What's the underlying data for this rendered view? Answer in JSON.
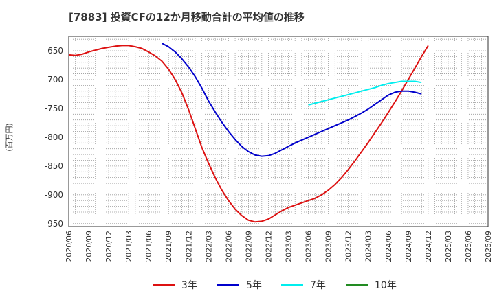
{
  "chart_data": {
    "type": "line",
    "title": "[7883]  投資CFの12か月移動合計の平均値の推移",
    "ylabel": "(百万円)",
    "xlabel": "",
    "ylim": [
      -955,
      -625
    ],
    "yticks": [
      -650,
      -700,
      -750,
      -800,
      -850,
      -900,
      -950
    ],
    "xlim": [
      "2020/06",
      "2025/09"
    ],
    "xticks": [
      "2020/06",
      "2020/09",
      "2020/12",
      "2021/03",
      "2021/06",
      "2021/09",
      "2021/12",
      "2022/03",
      "2022/06",
      "2022/09",
      "2022/12",
      "2023/03",
      "2023/06",
      "2023/09",
      "2023/12",
      "2024/03",
      "2024/06",
      "2024/09",
      "2024/12",
      "2025/03",
      "2025/06",
      "2025/09"
    ],
    "grid": true,
    "legend": "bottom",
    "series": [
      {
        "name": "3年",
        "color": "#dd1111",
        "points": [
          [
            "2020/06",
            -657
          ],
          [
            "2020/07",
            -658
          ],
          [
            "2020/08",
            -656
          ],
          [
            "2020/09",
            -652
          ],
          [
            "2020/10",
            -649
          ],
          [
            "2020/11",
            -646
          ],
          [
            "2020/12",
            -644
          ],
          [
            "2021/01",
            -642
          ],
          [
            "2021/02",
            -641
          ],
          [
            "2021/03",
            -641
          ],
          [
            "2021/04",
            -643
          ],
          [
            "2021/05",
            -646
          ],
          [
            "2021/06",
            -652
          ],
          [
            "2021/07",
            -659
          ],
          [
            "2021/08",
            -668
          ],
          [
            "2021/09",
            -682
          ],
          [
            "2021/10",
            -700
          ],
          [
            "2021/11",
            -723
          ],
          [
            "2021/12",
            -752
          ],
          [
            "2022/01",
            -785
          ],
          [
            "2022/02",
            -818
          ],
          [
            "2022/03",
            -845
          ],
          [
            "2022/04",
            -870
          ],
          [
            "2022/05",
            -892
          ],
          [
            "2022/06",
            -910
          ],
          [
            "2022/07",
            -925
          ],
          [
            "2022/08",
            -936
          ],
          [
            "2022/09",
            -944
          ],
          [
            "2022/10",
            -947
          ],
          [
            "2022/11",
            -946
          ],
          [
            "2022/12",
            -942
          ],
          [
            "2023/01",
            -935
          ],
          [
            "2023/02",
            -928
          ],
          [
            "2023/03",
            -922
          ],
          [
            "2023/04",
            -918
          ],
          [
            "2023/05",
            -914
          ],
          [
            "2023/06",
            -910
          ],
          [
            "2023/07",
            -906
          ],
          [
            "2023/08",
            -900
          ],
          [
            "2023/09",
            -892
          ],
          [
            "2023/10",
            -882
          ],
          [
            "2023/11",
            -870
          ],
          [
            "2023/12",
            -856
          ],
          [
            "2024/01",
            -841
          ],
          [
            "2024/02",
            -825
          ],
          [
            "2024/03",
            -809
          ],
          [
            "2024/04",
            -792
          ],
          [
            "2024/05",
            -775
          ],
          [
            "2024/06",
            -757
          ],
          [
            "2024/07",
            -739
          ],
          [
            "2024/08",
            -720
          ],
          [
            "2024/09",
            -700
          ],
          [
            "2024/10",
            -680
          ],
          [
            "2024/11",
            -660
          ],
          [
            "2024/12",
            -641
          ]
        ]
      },
      {
        "name": "5年",
        "color": "#0000cc",
        "points": [
          [
            "2021/08",
            -637
          ],
          [
            "2021/09",
            -643
          ],
          [
            "2021/10",
            -652
          ],
          [
            "2021/11",
            -664
          ],
          [
            "2021/12",
            -678
          ],
          [
            "2022/01",
            -695
          ],
          [
            "2022/02",
            -715
          ],
          [
            "2022/03",
            -737
          ],
          [
            "2022/04",
            -756
          ],
          [
            "2022/05",
            -774
          ],
          [
            "2022/06",
            -790
          ],
          [
            "2022/07",
            -804
          ],
          [
            "2022/08",
            -816
          ],
          [
            "2022/09",
            -825
          ],
          [
            "2022/10",
            -831
          ],
          [
            "2022/11",
            -833
          ],
          [
            "2022/12",
            -832
          ],
          [
            "2023/01",
            -828
          ],
          [
            "2023/02",
            -822
          ],
          [
            "2023/03",
            -816
          ],
          [
            "2023/04",
            -810
          ],
          [
            "2023/05",
            -805
          ],
          [
            "2023/06",
            -800
          ],
          [
            "2023/07",
            -795
          ],
          [
            "2023/08",
            -790
          ],
          [
            "2023/09",
            -785
          ],
          [
            "2023/10",
            -780
          ],
          [
            "2023/11",
            -775
          ],
          [
            "2023/12",
            -770
          ],
          [
            "2024/01",
            -764
          ],
          [
            "2024/02",
            -758
          ],
          [
            "2024/03",
            -751
          ],
          [
            "2024/04",
            -743
          ],
          [
            "2024/05",
            -735
          ],
          [
            "2024/06",
            -727
          ],
          [
            "2024/07",
            -722
          ],
          [
            "2024/08",
            -720
          ],
          [
            "2024/09",
            -720
          ],
          [
            "2024/10",
            -722
          ],
          [
            "2024/11",
            -725
          ]
        ]
      },
      {
        "name": "7年",
        "color": "#00eeee",
        "points": [
          [
            "2023/06",
            -744
          ],
          [
            "2023/07",
            -741
          ],
          [
            "2023/08",
            -738
          ],
          [
            "2023/09",
            -735
          ],
          [
            "2023/10",
            -732
          ],
          [
            "2023/11",
            -729
          ],
          [
            "2023/12",
            -726
          ],
          [
            "2024/01",
            -723
          ],
          [
            "2024/02",
            -720
          ],
          [
            "2024/03",
            -717
          ],
          [
            "2024/04",
            -714
          ],
          [
            "2024/05",
            -710
          ],
          [
            "2024/06",
            -707
          ],
          [
            "2024/07",
            -705
          ],
          [
            "2024/08",
            -703
          ],
          [
            "2024/09",
            -703
          ],
          [
            "2024/10",
            -703
          ],
          [
            "2024/11",
            -705
          ]
        ]
      },
      {
        "name": "10年",
        "color": "#228b22",
        "points": []
      }
    ]
  }
}
